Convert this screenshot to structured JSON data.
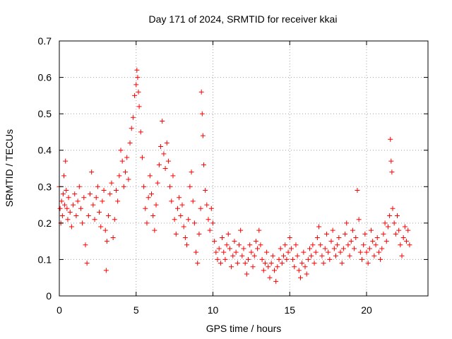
{
  "chart_data": {
    "type": "scatter",
    "title": "Day 171 of 2024, SRMTID for receiver kkai",
    "xlabel": "GPS time / hours",
    "ylabel": "SRMTID / TECUs",
    "xlim": [
      0,
      24
    ],
    "ylim": [
      0,
      0.7
    ],
    "xticks": [
      0,
      5,
      10,
      15,
      20
    ],
    "xtick_labels": [
      "0",
      "5",
      "10",
      "15",
      "20"
    ],
    "yticks": [
      0,
      0.1,
      0.2,
      0.3,
      0.4,
      0.5,
      0.6,
      0.7
    ],
    "ytick_labels": [
      "0",
      "0.1",
      "0.2",
      "0.3",
      "0.4",
      "0.5",
      "0.6",
      "0.7"
    ],
    "grid": true,
    "marker": "plus",
    "color": "#ff0000",
    "series": [
      {
        "name": "SRMTID",
        "points": [
          [
            0.0,
            0.3
          ],
          [
            0.05,
            0.24
          ],
          [
            0.1,
            0.2
          ],
          [
            0.15,
            0.26
          ],
          [
            0.2,
            0.22
          ],
          [
            0.25,
            0.28
          ],
          [
            0.3,
            0.33
          ],
          [
            0.35,
            0.25
          ],
          [
            0.4,
            0.37
          ],
          [
            0.45,
            0.29
          ],
          [
            0.5,
            0.24
          ],
          [
            0.55,
            0.21
          ],
          [
            0.6,
            0.27
          ],
          [
            0.7,
            0.23
          ],
          [
            0.8,
            0.19
          ],
          [
            0.9,
            0.25
          ],
          [
            1.0,
            0.28
          ],
          [
            1.1,
            0.22
          ],
          [
            1.2,
            0.26
          ],
          [
            1.3,
            0.3
          ],
          [
            1.4,
            0.24
          ],
          [
            1.5,
            0.2
          ],
          [
            1.6,
            0.27
          ],
          [
            1.7,
            0.14
          ],
          [
            1.8,
            0.09
          ],
          [
            1.9,
            0.22
          ],
          [
            2.0,
            0.28
          ],
          [
            2.1,
            0.34
          ],
          [
            2.2,
            0.25
          ],
          [
            2.3,
            0.21
          ],
          [
            2.4,
            0.27
          ],
          [
            2.5,
            0.3
          ],
          [
            2.6,
            0.23
          ],
          [
            2.7,
            0.19
          ],
          [
            2.8,
            0.26
          ],
          [
            2.9,
            0.29
          ],
          [
            3.0,
            0.18
          ],
          [
            3.05,
            0.07
          ],
          [
            3.1,
            0.15
          ],
          [
            3.2,
            0.22
          ],
          [
            3.3,
            0.28
          ],
          [
            3.4,
            0.31
          ],
          [
            3.5,
            0.16
          ],
          [
            3.6,
            0.21
          ],
          [
            3.7,
            0.29
          ],
          [
            3.8,
            0.26
          ],
          [
            3.9,
            0.33
          ],
          [
            4.0,
            0.4
          ],
          [
            4.1,
            0.37
          ],
          [
            4.2,
            0.3
          ],
          [
            4.3,
            0.34
          ],
          [
            4.4,
            0.38
          ],
          [
            4.5,
            0.32
          ],
          [
            4.6,
            0.42
          ],
          [
            4.7,
            0.46
          ],
          [
            4.8,
            0.49
          ],
          [
            4.9,
            0.55
          ],
          [
            5.0,
            0.58
          ],
          [
            5.05,
            0.62
          ],
          [
            5.1,
            0.6
          ],
          [
            5.15,
            0.56
          ],
          [
            5.2,
            0.52
          ],
          [
            5.3,
            0.45
          ],
          [
            5.4,
            0.38
          ],
          [
            5.5,
            0.3
          ],
          [
            5.6,
            0.24
          ],
          [
            5.7,
            0.2
          ],
          [
            5.8,
            0.27
          ],
          [
            5.9,
            0.33
          ],
          [
            6.0,
            0.28
          ],
          [
            6.1,
            0.22
          ],
          [
            6.2,
            0.18
          ],
          [
            6.3,
            0.25
          ],
          [
            6.4,
            0.31
          ],
          [
            6.5,
            0.36
          ],
          [
            6.6,
            0.41
          ],
          [
            6.7,
            0.48
          ],
          [
            6.8,
            0.39
          ],
          [
            6.9,
            0.35
          ],
          [
            7.0,
            0.42
          ],
          [
            7.1,
            0.37
          ],
          [
            7.2,
            0.3
          ],
          [
            7.3,
            0.26
          ],
          [
            7.4,
            0.33
          ],
          [
            7.5,
            0.21
          ],
          [
            7.6,
            0.17
          ],
          [
            7.7,
            0.24
          ],
          [
            7.8,
            0.27
          ],
          [
            7.9,
            0.22
          ],
          [
            8.0,
            0.25
          ],
          [
            8.1,
            0.19
          ],
          [
            8.2,
            0.16
          ],
          [
            8.3,
            0.14
          ],
          [
            8.4,
            0.21
          ],
          [
            8.5,
            0.3
          ],
          [
            8.6,
            0.34
          ],
          [
            8.7,
            0.26
          ],
          [
            8.8,
            0.2
          ],
          [
            8.9,
            0.12
          ],
          [
            9.0,
            0.09
          ],
          [
            9.1,
            0.17
          ],
          [
            9.2,
            0.24
          ],
          [
            9.25,
            0.56
          ],
          [
            9.3,
            0.5
          ],
          [
            9.35,
            0.44
          ],
          [
            9.4,
            0.36
          ],
          [
            9.5,
            0.29
          ],
          [
            9.6,
            0.25
          ],
          [
            9.7,
            0.21
          ],
          [
            9.8,
            0.18
          ],
          [
            9.9,
            0.24
          ],
          [
            10.0,
            0.2
          ],
          [
            10.1,
            0.15
          ],
          [
            10.2,
            0.12
          ],
          [
            10.3,
            0.1
          ],
          [
            10.4,
            0.13
          ],
          [
            10.5,
            0.09
          ],
          [
            10.6,
            0.16
          ],
          [
            10.7,
            0.12
          ],
          [
            10.8,
            0.1
          ],
          [
            10.9,
            0.14
          ],
          [
            11.0,
            0.17
          ],
          [
            11.1,
            0.13
          ],
          [
            11.2,
            0.08
          ],
          [
            11.3,
            0.11
          ],
          [
            11.4,
            0.15
          ],
          [
            11.5,
            0.12
          ],
          [
            11.6,
            0.09
          ],
          [
            11.7,
            0.14
          ],
          [
            11.8,
            0.18
          ],
          [
            11.9,
            0.11
          ],
          [
            12.0,
            0.13
          ],
          [
            12.1,
            0.09
          ],
          [
            12.2,
            0.06
          ],
          [
            12.3,
            0.1
          ],
          [
            12.4,
            0.14
          ],
          [
            12.5,
            0.12
          ],
          [
            12.6,
            0.08
          ],
          [
            12.7,
            0.11
          ],
          [
            12.8,
            0.15
          ],
          [
            12.9,
            0.13
          ],
          [
            13.0,
            0.18
          ],
          [
            13.1,
            0.14
          ],
          [
            13.2,
            0.1
          ],
          [
            13.3,
            0.07
          ],
          [
            13.4,
            0.09
          ],
          [
            13.5,
            0.12
          ],
          [
            13.6,
            0.08
          ],
          [
            13.7,
            0.05
          ],
          [
            13.8,
            0.09
          ],
          [
            13.9,
            0.11
          ],
          [
            14.0,
            0.07
          ],
          [
            14.1,
            0.04
          ],
          [
            14.2,
            0.08
          ],
          [
            14.3,
            0.1
          ],
          [
            14.4,
            0.13
          ],
          [
            14.5,
            0.09
          ],
          [
            14.6,
            0.11
          ],
          [
            14.7,
            0.14
          ],
          [
            14.8,
            0.1
          ],
          [
            14.9,
            0.12
          ],
          [
            15.0,
            0.16
          ],
          [
            15.1,
            0.13
          ],
          [
            15.2,
            0.1
          ],
          [
            15.3,
            0.08
          ],
          [
            15.4,
            0.14
          ],
          [
            15.5,
            0.11
          ],
          [
            15.6,
            0.07
          ],
          [
            15.7,
            0.05
          ],
          [
            15.8,
            0.09
          ],
          [
            15.9,
            0.12
          ],
          [
            16.0,
            0.08
          ],
          [
            16.1,
            0.06
          ],
          [
            16.2,
            0.1
          ],
          [
            16.3,
            0.13
          ],
          [
            16.4,
            0.11
          ],
          [
            16.5,
            0.14
          ],
          [
            16.6,
            0.09
          ],
          [
            16.7,
            0.12
          ],
          [
            16.8,
            0.16
          ],
          [
            16.9,
            0.19
          ],
          [
            17.0,
            0.14
          ],
          [
            17.1,
            0.11
          ],
          [
            17.2,
            0.09
          ],
          [
            17.3,
            0.13
          ],
          [
            17.4,
            0.17
          ],
          [
            17.5,
            0.12
          ],
          [
            17.6,
            0.1
          ],
          [
            17.7,
            0.15
          ],
          [
            17.8,
            0.18
          ],
          [
            17.9,
            0.13
          ],
          [
            18.0,
            0.11
          ],
          [
            18.1,
            0.14
          ],
          [
            18.2,
            0.16
          ],
          [
            18.3,
            0.12
          ],
          [
            18.4,
            0.09
          ],
          [
            18.5,
            0.13
          ],
          [
            18.6,
            0.17
          ],
          [
            18.7,
            0.2
          ],
          [
            18.8,
            0.14
          ],
          [
            18.9,
            0.11
          ],
          [
            19.0,
            0.15
          ],
          [
            19.1,
            0.18
          ],
          [
            19.2,
            0.13
          ],
          [
            19.3,
            0.16
          ],
          [
            19.4,
            0.29
          ],
          [
            19.5,
            0.21
          ],
          [
            19.6,
            0.12
          ],
          [
            19.7,
            0.1
          ],
          [
            19.8,
            0.14
          ],
          [
            19.9,
            0.17
          ],
          [
            20.0,
            0.12
          ],
          [
            20.1,
            0.09
          ],
          [
            20.2,
            0.13
          ],
          [
            20.3,
            0.18
          ],
          [
            20.4,
            0.15
          ],
          [
            20.5,
            0.11
          ],
          [
            20.6,
            0.14
          ],
          [
            20.7,
            0.16
          ],
          [
            20.8,
            0.12
          ],
          [
            20.9,
            0.1
          ],
          [
            21.0,
            0.13
          ],
          [
            21.1,
            0.17
          ],
          [
            21.2,
            0.2
          ],
          [
            21.3,
            0.15
          ],
          [
            21.4,
            0.19
          ],
          [
            21.5,
            0.22
          ],
          [
            21.55,
            0.43
          ],
          [
            21.6,
            0.37
          ],
          [
            21.65,
            0.34
          ],
          [
            21.7,
            0.24
          ],
          [
            21.8,
            0.2
          ],
          [
            21.9,
            0.17
          ],
          [
            22.0,
            0.22
          ],
          [
            22.1,
            0.18
          ],
          [
            22.2,
            0.14
          ],
          [
            22.3,
            0.11
          ],
          [
            22.4,
            0.16
          ],
          [
            22.5,
            0.19
          ],
          [
            22.6,
            0.15
          ],
          [
            22.7,
            0.18
          ],
          [
            22.8,
            0.14
          ]
        ]
      }
    ]
  }
}
